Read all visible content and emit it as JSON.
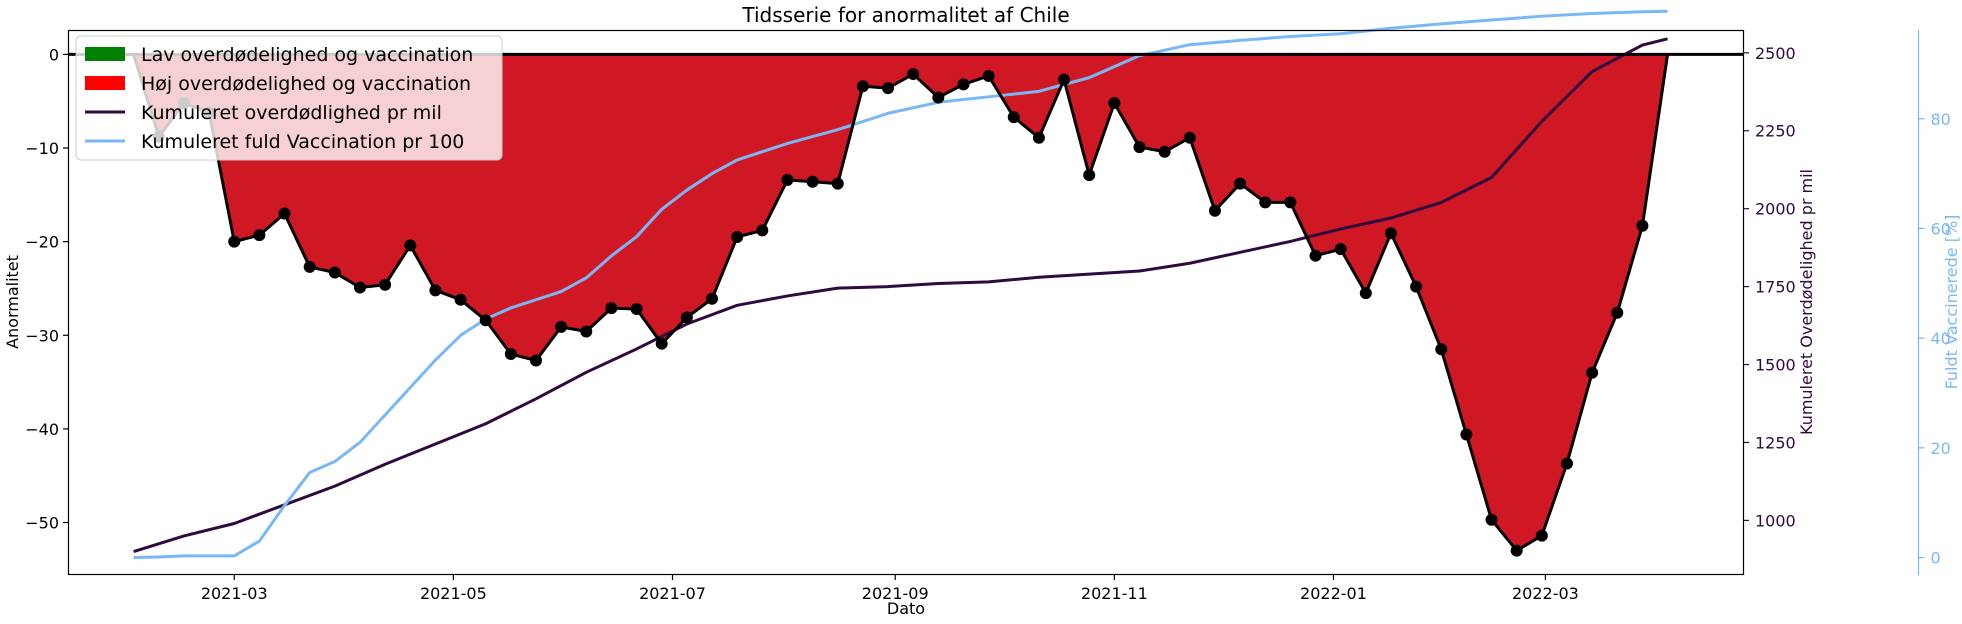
{
  "chart_data": {
    "type": "area",
    "title": "Tidsserie for anormalitet af Chile",
    "xlabel": "Dato",
    "ylabel": "Anormalitet",
    "ylabel_right1": "Kumuleret Overdødelighed pr mil",
    "ylabel_right2": "Fuldt Vaccinerede [%]",
    "ylim": [
      -55.5,
      2.5
    ],
    "ylim_right1": [
      828,
      2570
    ],
    "ylim_right2": [
      -3,
      96
    ],
    "xlim": [
      "2021-01-14",
      "2022-04-25"
    ],
    "x_ticks": [
      "2021-03",
      "2021-05",
      "2021-07",
      "2021-09",
      "2021-11",
      "2022-01",
      "2022-03"
    ],
    "y_ticks": [
      0,
      -10,
      -20,
      -30,
      -40,
      -50
    ],
    "y_ticks_right1": [
      1000,
      1250,
      1500,
      1750,
      2000,
      2250,
      2500
    ],
    "y_ticks_right2": [
      0,
      20,
      40,
      60,
      80
    ],
    "legend_position": "top-left",
    "legend": [
      {
        "label": "Lav overdødelighed og vaccination",
        "kind": "patch",
        "color": "#008000"
      },
      {
        "label": "Høj overdødelighed og vaccination",
        "kind": "patch",
        "color": "#ff0000"
      },
      {
        "label": "Kumuleret overdødlighed pr mil",
        "kind": "line",
        "color": "#2e0a3f"
      },
      {
        "label": "Kumuleret fuld Vaccination pr 100",
        "kind": "line",
        "color": "#7ab8f5"
      }
    ],
    "colors": {
      "fill": "#d01825",
      "line": "#000000",
      "excess": "#2e0a3f",
      "vaccination": "#7ab8f5",
      "zero_line": "#000000"
    },
    "series": [
      {
        "name": "Anormalitet",
        "axis": "left",
        "x": [
          "2021-02-01",
          "2021-02-08",
          "2021-02-15",
          "2021-02-22",
          "2021-03-01",
          "2021-03-08",
          "2021-03-15",
          "2021-03-22",
          "2021-03-29",
          "2021-04-05",
          "2021-04-12",
          "2021-04-19",
          "2021-04-26",
          "2021-05-03",
          "2021-05-10",
          "2021-05-17",
          "2021-05-24",
          "2021-05-31",
          "2021-06-07",
          "2021-06-14",
          "2021-06-21",
          "2021-06-28",
          "2021-07-05",
          "2021-07-12",
          "2021-07-19",
          "2021-07-26",
          "2021-08-02",
          "2021-08-09",
          "2021-08-16",
          "2021-08-23",
          "2021-08-30",
          "2021-09-06",
          "2021-09-13",
          "2021-09-20",
          "2021-09-27",
          "2021-10-04",
          "2021-10-11",
          "2021-10-18",
          "2021-10-25",
          "2021-11-01",
          "2021-11-08",
          "2021-11-15",
          "2021-11-22",
          "2021-11-29",
          "2021-12-06",
          "2021-12-13",
          "2021-12-20",
          "2021-12-27",
          "2022-01-03",
          "2022-01-10",
          "2022-01-17",
          "2022-01-24",
          "2022-01-31",
          "2022-02-07",
          "2022-02-14",
          "2022-02-21",
          "2022-02-28",
          "2022-03-07",
          "2022-03-14",
          "2022-03-21",
          "2022-03-28",
          "2022-04-04"
        ],
        "values": [
          0,
          -8.8,
          -5.2,
          -6.2,
          -20.0,
          -19.3,
          -17.0,
          -22.7,
          -23.3,
          -24.9,
          -24.6,
          -20.4,
          -25.2,
          -26.2,
          -28.4,
          -32.0,
          -32.7,
          -29.1,
          -29.6,
          -27.1,
          -27.2,
          -30.9,
          -28.1,
          -26.1,
          -19.5,
          -18.8,
          -13.4,
          -13.6,
          -13.8,
          -3.4,
          -3.6,
          -2.1,
          -4.6,
          -3.2,
          -2.3,
          -6.7,
          -8.9,
          -2.7,
          -12.9,
          -5.2,
          -9.9,
          -10.4,
          -8.9,
          -16.7,
          -13.8,
          -15.8,
          -15.8,
          -21.5,
          -20.8,
          -25.5,
          -19.1,
          -24.8,
          -31.5,
          -40.6,
          -49.7,
          -53.0,
          -51.4,
          -43.7,
          -34.0,
          -27.6,
          -18.3,
          0
        ]
      },
      {
        "name": "Kumuleret overdødlighed pr mil",
        "axis": "right1",
        "x": [
          "2021-02-01",
          "2021-02-15",
          "2021-03-01",
          "2021-03-15",
          "2021-03-29",
          "2021-04-12",
          "2021-04-26",
          "2021-05-10",
          "2021-05-24",
          "2021-06-07",
          "2021-06-21",
          "2021-07-05",
          "2021-07-19",
          "2021-08-02",
          "2021-08-16",
          "2021-08-30",
          "2021-09-13",
          "2021-09-27",
          "2021-10-11",
          "2021-10-25",
          "2021-11-08",
          "2021-11-22",
          "2021-12-06",
          "2021-12-20",
          "2022-01-03",
          "2022-01-17",
          "2022-01-31",
          "2022-02-14",
          "2022-02-28",
          "2022-03-14",
          "2022-03-28",
          "2022-04-04"
        ],
        "values": [
          900,
          950,
          990,
          1050,
          1110,
          1180,
          1245,
          1310,
          1390,
          1475,
          1550,
          1630,
          1690,
          1720,
          1745,
          1750,
          1760,
          1765,
          1780,
          1790,
          1800,
          1825,
          1860,
          1895,
          1935,
          1970,
          2020,
          2100,
          2280,
          2440,
          2525,
          2545
        ]
      },
      {
        "name": "Kumuleret fuld Vaccination pr 100",
        "axis": "right2",
        "x": [
          "2021-02-01",
          "2021-02-08",
          "2021-02-15",
          "2021-03-01",
          "2021-03-08",
          "2021-03-15",
          "2021-03-22",
          "2021-03-29",
          "2021-04-05",
          "2021-04-12",
          "2021-04-19",
          "2021-04-26",
          "2021-05-03",
          "2021-05-10",
          "2021-05-17",
          "2021-05-24",
          "2021-05-31",
          "2021-06-07",
          "2021-06-14",
          "2021-06-21",
          "2021-06-28",
          "2021-07-05",
          "2021-07-12",
          "2021-07-19",
          "2021-07-26",
          "2021-08-02",
          "2021-08-16",
          "2021-08-30",
          "2021-09-13",
          "2021-09-27",
          "2021-10-11",
          "2021-10-25",
          "2021-11-08",
          "2021-11-22",
          "2021-12-06",
          "2021-12-20",
          "2022-01-03",
          "2022-01-17",
          "2022-01-31",
          "2022-02-14",
          "2022-02-28",
          "2022-03-14",
          "2022-03-28",
          "2022-04-04"
        ],
        "values": [
          0,
          0.1,
          0.3,
          0.3,
          3.0,
          9.5,
          15.5,
          17.5,
          21.0,
          26.0,
          31.0,
          36.0,
          40.5,
          43.5,
          45.5,
          47.0,
          48.5,
          51.0,
          55.0,
          58.5,
          63.5,
          67.0,
          70.0,
          72.5,
          74.0,
          75.5,
          78.0,
          81.0,
          83.0,
          84.0,
          85.0,
          87.5,
          91.5,
          93.5,
          94.3,
          95.0,
          95.5,
          96.5,
          97.3,
          98.0,
          98.7,
          99.2,
          99.5,
          99.6
        ]
      }
    ]
  }
}
